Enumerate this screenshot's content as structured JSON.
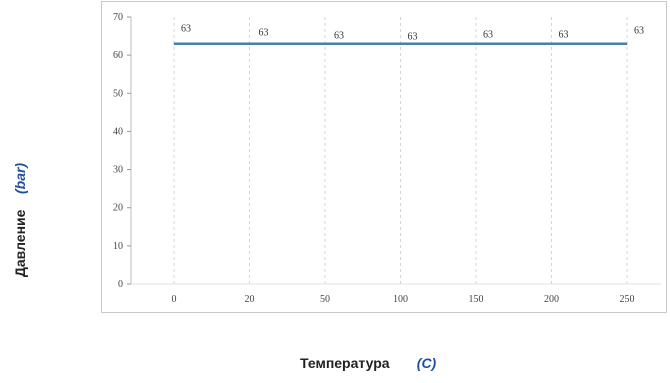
{
  "chart_data": {
    "type": "line",
    "title": "",
    "xlabel": "Температура",
    "xlabel_unit": "(C)",
    "ylabel": "Давление",
    "ylabel_unit": "(bar)",
    "categories": [
      "0",
      "20",
      "50",
      "100",
      "150",
      "200",
      "250"
    ],
    "series": [
      {
        "values": [
          63,
          63,
          63,
          63,
          63,
          63,
          63
        ],
        "color": "#4a7fa7"
      }
    ],
    "data_labels": [
      "63",
      "63",
      "63",
      "63",
      "63",
      "63",
      "63"
    ],
    "ylim": [
      0,
      70
    ],
    "yticks": [
      "0",
      "10",
      "20",
      "30",
      "40",
      "50",
      "60",
      "70"
    ],
    "grid": "vertical-dashed",
    "legend": "none"
  }
}
